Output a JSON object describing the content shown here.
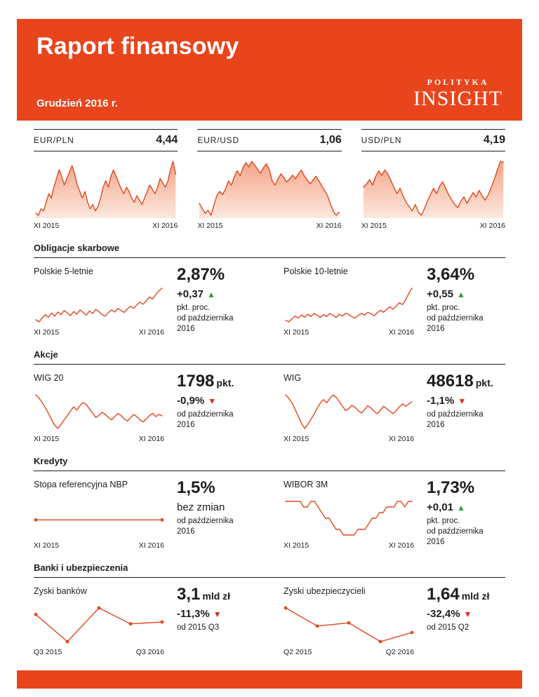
{
  "header": {
    "title": "Raport finansowy",
    "date": "Grudzień 2016 r.",
    "logo_top": "POLITYKA",
    "logo_bottom": "INSIGHT"
  },
  "colors": {
    "accent": "#E8451C",
    "chart_line": "#E2471E",
    "fill_top": "#F3A487",
    "fill_bottom": "#FCE8DE",
    "up": "#2F9E3E",
    "down": "#DC2B1C",
    "ink": "#1D1D1B"
  },
  "icons": {
    "arrow_up": "▲",
    "arrow_down": "▼"
  },
  "sections": [
    {
      "title": "Obligacje skarbowe",
      "metrics": [
        {
          "label": "Polskie 5-letnie",
          "value": "2,87%",
          "value_suffix": "",
          "change": "+0,37",
          "direction": "up",
          "note_lines": [
            "pkt. proc.",
            "od października",
            "2016"
          ]
        },
        {
          "label": "Polskie 10-letnie",
          "value": "3,64%",
          "value_suffix": "",
          "change": "+0,55",
          "direction": "up",
          "note_lines": [
            "pkt. proc.",
            "od października",
            "2016"
          ]
        }
      ]
    },
    {
      "title": "Akcje",
      "metrics": [
        {
          "label": "WIG 20",
          "value": "1798",
          "value_suffix": "pkt.",
          "change": "-0,9%",
          "direction": "down",
          "note_lines": [
            "od października",
            "2016"
          ]
        },
        {
          "label": "WIG",
          "value": "48618",
          "value_suffix": "pkt.",
          "change": "-1,1%",
          "direction": "down",
          "note_lines": [
            "od października",
            "2016"
          ]
        }
      ]
    },
    {
      "title": "Kredyty",
      "metrics": [
        {
          "label": "Stopa referencyjna NBP",
          "value": "1,5%",
          "value_suffix": "",
          "change": "bez zmian",
          "direction": "none",
          "note_lines": [
            "od października",
            "2016"
          ]
        },
        {
          "label": "WIBOR 3M",
          "value": "1,73%",
          "value_suffix": "",
          "change": "+0,01",
          "direction": "up",
          "note_lines": [
            "pkt. proc.",
            "od października",
            "2016"
          ]
        }
      ]
    },
    {
      "title": "Banki i ubezpieczenia",
      "metrics": [
        {
          "label": "Zyski banków",
          "value": "3,1",
          "value_suffix": "mld zł",
          "change": "-11,3%",
          "direction": "down",
          "note_lines": [
            "od 2015 Q3"
          ]
        },
        {
          "label": "Zyski ubezpieczycieli",
          "value": "1,64",
          "value_suffix": "mld zł",
          "change": "-32,4%",
          "direction": "down",
          "note_lines": [
            "od 2015 Q2"
          ]
        }
      ]
    }
  ],
  "chart_data": [
    {
      "id": "eur-pln",
      "type": "area",
      "title": "EUR/PLN",
      "value_label": "4,44",
      "x_start": "XI 2015",
      "x_end": "XI 2016",
      "values": [
        4.26,
        4.25,
        4.28,
        4.27,
        4.31,
        4.35,
        4.33,
        4.38,
        4.42,
        4.46,
        4.43,
        4.39,
        4.42,
        4.45,
        4.48,
        4.44,
        4.39,
        4.36,
        4.33,
        4.36,
        4.31,
        4.28,
        4.3,
        4.27,
        4.29,
        4.33,
        4.38,
        4.41,
        4.38,
        4.43,
        4.46,
        4.43,
        4.4,
        4.37,
        4.35,
        4.38,
        4.36,
        4.33,
        4.31,
        4.34,
        4.32,
        4.3,
        4.33,
        4.36,
        4.39,
        4.37,
        4.35,
        4.38,
        4.42,
        4.4,
        4.38,
        4.41,
        4.46,
        4.5,
        4.44
      ]
    },
    {
      "id": "eur-usd",
      "type": "area",
      "title": "EUR/USD",
      "value_label": "1,06",
      "x_start": "XI 2015",
      "x_end": "XI 2016",
      "values": [
        1.074,
        1.066,
        1.058,
        1.063,
        1.055,
        1.071,
        1.086,
        1.093,
        1.088,
        1.097,
        1.11,
        1.103,
        1.116,
        1.126,
        1.118,
        1.131,
        1.139,
        1.132,
        1.141,
        1.135,
        1.128,
        1.122,
        1.131,
        1.137,
        1.128,
        1.11,
        1.103,
        1.113,
        1.121,
        1.115,
        1.108,
        1.113,
        1.119,
        1.113,
        1.121,
        1.127,
        1.118,
        1.112,
        1.105,
        1.111,
        1.117,
        1.11,
        1.102,
        1.094,
        1.086,
        1.073,
        1.061,
        1.055,
        1.06
      ]
    },
    {
      "id": "usd-pln",
      "type": "area",
      "title": "USD/PLN",
      "value_label": "4,19",
      "x_start": "XI 2015",
      "x_end": "XI 2016",
      "values": [
        3.96,
        3.99,
        4.03,
        3.98,
        4.06,
        4.11,
        4.07,
        4.12,
        4.08,
        4.02,
        3.96,
        3.9,
        3.95,
        3.88,
        3.82,
        3.78,
        3.74,
        3.8,
        3.73,
        3.7,
        3.76,
        3.83,
        3.89,
        3.95,
        3.9,
        3.97,
        4.01,
        3.95,
        3.89,
        3.84,
        3.8,
        3.77,
        3.83,
        3.87,
        3.81,
        3.86,
        3.91,
        3.87,
        3.93,
        3.88,
        3.84,
        3.89,
        3.96,
        4.03,
        4.12,
        4.2,
        4.19
      ]
    },
    {
      "id": "bond-5y",
      "type": "line",
      "title": "Polskie 5-letnie",
      "value_label": "2,87%",
      "x_start": "XI 2015",
      "x_end": "XI 2016",
      "values": [
        2.26,
        2.22,
        2.29,
        2.36,
        2.31,
        2.39,
        2.33,
        2.41,
        2.36,
        2.44,
        2.39,
        2.34,
        2.42,
        2.37,
        2.45,
        2.4,
        2.35,
        2.43,
        2.38,
        2.46,
        2.42,
        2.36,
        2.33,
        2.4,
        2.45,
        2.41,
        2.48,
        2.44,
        2.4,
        2.47,
        2.52,
        2.48,
        2.55,
        2.6,
        2.56,
        2.63,
        2.7,
        2.66,
        2.75,
        2.82,
        2.87
      ]
    },
    {
      "id": "bond-10y",
      "type": "line",
      "title": "Polskie 10-letnie",
      "value_label": "3,64%",
      "x_start": "XI 2015",
      "x_end": "XI 2016",
      "values": [
        2.8,
        2.76,
        2.84,
        2.91,
        2.86,
        2.94,
        2.88,
        2.96,
        2.9,
        2.98,
        2.93,
        2.88,
        2.95,
        2.9,
        2.98,
        2.93,
        2.88,
        2.96,
        2.91,
        2.99,
        2.95,
        2.89,
        2.86,
        2.93,
        2.98,
        2.94,
        3.01,
        2.97,
        2.92,
        3.0,
        3.06,
        3.01,
        3.09,
        3.15,
        3.09,
        3.17,
        3.26,
        3.21,
        3.34,
        3.5,
        3.64
      ]
    },
    {
      "id": "wig20",
      "type": "line",
      "title": "WIG 20",
      "value_label": "1798 pkt.",
      "x_start": "XI 2015",
      "x_end": "XI 2016",
      "values": [
        1992,
        1961,
        1923,
        1874,
        1822,
        1763,
        1712,
        1683,
        1721,
        1762,
        1801,
        1843,
        1881,
        1852,
        1892,
        1921,
        1901,
        1862,
        1823,
        1784,
        1802,
        1831,
        1812,
        1783,
        1762,
        1791,
        1821,
        1801,
        1772,
        1751,
        1781,
        1811,
        1791,
        1762,
        1742,
        1771,
        1801,
        1822,
        1791,
        1812,
        1798
      ]
    },
    {
      "id": "wig",
      "type": "line",
      "title": "WIG",
      "value_label": "48618 pkt.",
      "x_start": "XI 2015",
      "x_end": "XI 2016",
      "values": [
        49850,
        49230,
        48410,
        47240,
        46050,
        44830,
        43920,
        44610,
        45520,
        46430,
        47510,
        48420,
        49010,
        48430,
        49210,
        49790,
        49410,
        48620,
        47830,
        47040,
        47420,
        48010,
        47630,
        47050,
        46620,
        47230,
        47910,
        47520,
        46930,
        46520,
        47120,
        47810,
        47430,
        46930,
        46530,
        47040,
        47720,
        48240,
        47830,
        48230,
        48618
      ]
    },
    {
      "id": "nbp",
      "type": "line",
      "title": "Stopa referencyjna NBP",
      "value_label": "1,5%",
      "x_start": "XI 2015",
      "x_end": "XI 2016",
      "dots": "ends",
      "values": [
        1.5,
        1.5
      ]
    },
    {
      "id": "wibor",
      "type": "line",
      "title": "WIBOR 3M",
      "value_label": "1,73%",
      "x_start": "XI 2015",
      "x_end": "XI 2016",
      "values": [
        1.73,
        1.73,
        1.73,
        1.73,
        1.73,
        1.72,
        1.72,
        1.73,
        1.73,
        1.72,
        1.71,
        1.7,
        1.7,
        1.69,
        1.68,
        1.68,
        1.67,
        1.67,
        1.67,
        1.67,
        1.68,
        1.68,
        1.68,
        1.69,
        1.7,
        1.7,
        1.71,
        1.71,
        1.72,
        1.72,
        1.72,
        1.73,
        1.73,
        1.72,
        1.73,
        1.73
      ]
    },
    {
      "id": "banki",
      "type": "line",
      "title": "Zyski banków (mld zł)",
      "value_label": "3,1 mld zł",
      "x_start": "Q3 2015",
      "x_end": "Q3 2016",
      "dots": "all",
      "values": [
        3.5,
        2.05,
        3.85,
        3.0,
        3.1
      ]
    },
    {
      "id": "ubezpieczyciele",
      "type": "line",
      "title": "Zyski ubezpieczycieli (mld zł)",
      "value_label": "1,64 mld zł",
      "x_start": "Q2 2015",
      "x_end": "Q2 2016",
      "dots": "all",
      "values": [
        2.43,
        1.85,
        1.95,
        1.35,
        1.64
      ]
    }
  ]
}
